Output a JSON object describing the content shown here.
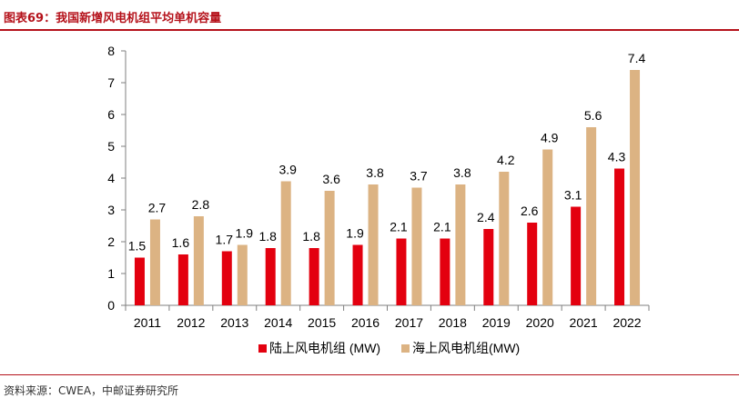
{
  "header": {
    "title": "图表69：我国新增风电机组平均单机容量"
  },
  "chart_data": {
    "type": "bar",
    "title": "",
    "xlabel": "",
    "ylabel": "",
    "categories": [
      "2011",
      "2012",
      "2013",
      "2014",
      "2015",
      "2016",
      "2017",
      "2018",
      "2019",
      "2020",
      "2021",
      "2022"
    ],
    "series": [
      {
        "name": "陆上风电机组 (MW)",
        "color": "#e3000f",
        "values": [
          1.5,
          1.6,
          1.7,
          1.8,
          1.8,
          1.9,
          2.1,
          2.1,
          2.4,
          2.6,
          3.1,
          4.3
        ]
      },
      {
        "name": "海上风电机组(MW)",
        "color": "#dcb383",
        "values": [
          2.7,
          2.8,
          1.9,
          3.9,
          3.6,
          3.8,
          3.7,
          3.8,
          4.2,
          4.9,
          5.6,
          7.4
        ]
      }
    ],
    "ylim": [
      0,
      8
    ],
    "yticks": [
      "0",
      "1",
      "2",
      "3",
      "4",
      "5",
      "6",
      "7",
      "8"
    ],
    "grid": false,
    "legend_position": "bottom"
  },
  "footer": {
    "source": "资料来源：CWEA，中邮证券研究所"
  }
}
